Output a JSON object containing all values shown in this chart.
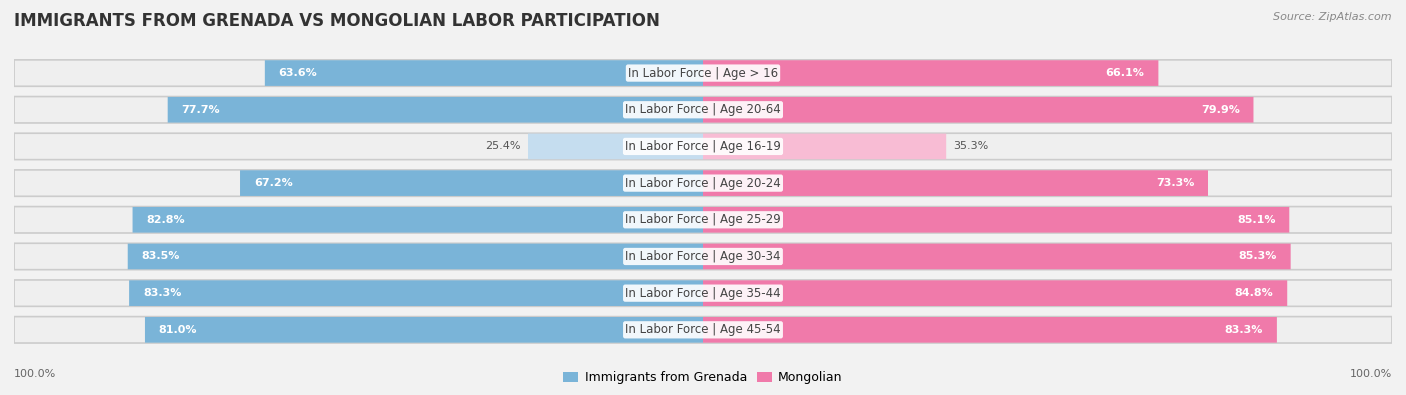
{
  "title": "IMMIGRANTS FROM GRENADA VS MONGOLIAN LABOR PARTICIPATION",
  "source": "Source: ZipAtlas.com",
  "categories": [
    "In Labor Force | Age > 16",
    "In Labor Force | Age 20-64",
    "In Labor Force | Age 16-19",
    "In Labor Force | Age 20-24",
    "In Labor Force | Age 25-29",
    "In Labor Force | Age 30-34",
    "In Labor Force | Age 35-44",
    "In Labor Force | Age 45-54"
  ],
  "grenada_values": [
    63.6,
    77.7,
    25.4,
    67.2,
    82.8,
    83.5,
    83.3,
    81.0
  ],
  "mongolian_values": [
    66.1,
    79.9,
    35.3,
    73.3,
    85.1,
    85.3,
    84.8,
    83.3
  ],
  "grenada_color": "#7ab4d8",
  "mongolian_color": "#f07aaa",
  "grenada_color_light": "#c5ddef",
  "mongolian_color_light": "#f8bcd4",
  "row_bg_color": "#e8e8e8",
  "outer_bg_color": "#f2f2f2",
  "max_value": 100.0,
  "legend_grenada": "Immigrants from Grenada",
  "legend_mongolian": "Mongolian",
  "title_fontsize": 12,
  "label_fontsize": 8.5,
  "value_fontsize": 8.0
}
